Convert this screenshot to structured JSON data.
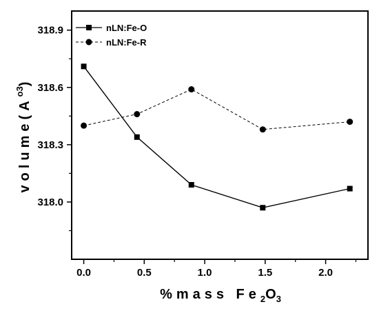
{
  "chart_data": {
    "type": "line",
    "title": "",
    "xlabel": {
      "main": "%mass Fe",
      "sub1": "2",
      "mid": "O",
      "sub2": "3"
    },
    "ylabel": {
      "main": "volume(A",
      "sup": "o3",
      "close": ")"
    },
    "xlim": [
      -0.1,
      2.35
    ],
    "ylim": [
      317.7,
      319.0
    ],
    "xticks": [
      0.0,
      0.5,
      1.0,
      1.5,
      2.0
    ],
    "xtick_labels": [
      "0.0",
      "0.5",
      "1.0",
      "1.5",
      "2.0"
    ],
    "yticks": [
      318.0,
      318.3,
      318.6,
      318.9
    ],
    "ytick_labels": [
      "318.0",
      "318.3",
      "318.6",
      "318.9"
    ],
    "legend_position": "top-left",
    "grid": false,
    "series": [
      {
        "name": "nLN:Fe-O",
        "marker": "square",
        "line": "solid",
        "x": [
          0.0,
          0.44,
          0.89,
          1.48,
          2.2
        ],
        "y": [
          318.71,
          318.34,
          318.09,
          317.97,
          318.07
        ]
      },
      {
        "name": "nLN:Fe-R",
        "marker": "circle",
        "line": "dashed",
        "x": [
          0.0,
          0.44,
          0.89,
          1.48,
          2.2
        ],
        "y": [
          318.4,
          318.46,
          318.59,
          318.38,
          318.42
        ]
      }
    ]
  }
}
